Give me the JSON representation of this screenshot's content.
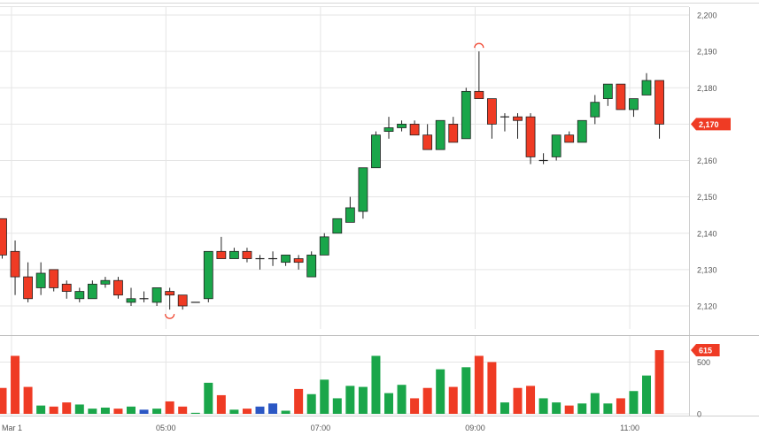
{
  "chart_data": {
    "type": "candlestick",
    "price_axis": {
      "ticks": [
        "2,200",
        "2,190",
        "2,180",
        "2,170",
        "2,160",
        "2,150",
        "2,140",
        "2,130",
        "2,120"
      ],
      "range": [
        2115,
        2200
      ],
      "last_price": 2170,
      "last_price_label": "2,170"
    },
    "volume_axis": {
      "ticks": [
        "500",
        "0"
      ],
      "range": [
        0,
        615
      ],
      "last_volume_label": "615"
    },
    "time_axis": {
      "labels": [
        "Mar 1",
        "05:00",
        "07:00",
        "09:00",
        "11:00"
      ]
    },
    "colors": {
      "up": "#1aa64a",
      "down": "#ef3b24",
      "neutral_volume": "#2b57c4",
      "grid": "#e5e5e5",
      "axis_text": "#555555",
      "tag_bg": "#ef3b24",
      "marker": "#ef3b24"
    },
    "grid": true,
    "candles": [
      {
        "t": "",
        "o": 2144,
        "h": 2144,
        "l": 2133,
        "c": 2134,
        "v": 250
      },
      {
        "t": "",
        "o": 2135,
        "h": 2138,
        "l": 2123,
        "c": 2128,
        "v": 560
      },
      {
        "t": "",
        "o": 2128,
        "h": 2132,
        "l": 2121,
        "c": 2122,
        "v": 260
      },
      {
        "t": "",
        "o": 2125,
        "h": 2132,
        "l": 2123,
        "c": 2129,
        "v": 80
      },
      {
        "t": "",
        "o": 2130,
        "h": 2130,
        "l": 2124,
        "c": 2125,
        "v": 70
      },
      {
        "t": "",
        "o": 2126,
        "h": 2127,
        "l": 2122,
        "c": 2124,
        "v": 110
      },
      {
        "t": "",
        "o": 2122,
        "h": 2125,
        "l": 2121,
        "c": 2124,
        "v": 90
      },
      {
        "t": "",
        "o": 2122,
        "h": 2127,
        "l": 2122,
        "c": 2126,
        "v": 50
      },
      {
        "t": "",
        "o": 2126,
        "h": 2128,
        "l": 2125,
        "c": 2127,
        "v": 60
      },
      {
        "t": "",
        "o": 2127,
        "h": 2128,
        "l": 2122,
        "c": 2123,
        "v": 50
      },
      {
        "t": "",
        "o": 2121,
        "h": 2125,
        "l": 2120,
        "c": 2122,
        "v": 70
      },
      {
        "t": "",
        "o": 2122,
        "h": 2124,
        "l": 2121,
        "c": 2122,
        "v": 40,
        "vc": "neutral"
      },
      {
        "t": "",
        "o": 2121,
        "h": 2125,
        "l": 2120,
        "c": 2125,
        "v": 50
      },
      {
        "t": "",
        "o": 2124,
        "h": 2125,
        "l": 2119,
        "c": 2123,
        "v": 120
      },
      {
        "t": "",
        "o": 2123,
        "h": 2123,
        "l": 2119,
        "c": 2120,
        "v": 70
      },
      {
        "t": "",
        "o": 2121,
        "h": 2121,
        "l": 2121,
        "c": 2121,
        "v": 10
      },
      {
        "t": "",
        "o": 2122,
        "h": 2135,
        "l": 2121,
        "c": 2135,
        "v": 300
      },
      {
        "t": "",
        "o": 2135,
        "h": 2139,
        "l": 2133,
        "c": 2133,
        "v": 180
      },
      {
        "t": "",
        "o": 2133,
        "h": 2136,
        "l": 2133,
        "c": 2135,
        "v": 40
      },
      {
        "t": "",
        "o": 2135,
        "h": 2136,
        "l": 2132,
        "c": 2133,
        "v": 50
      },
      {
        "t": "",
        "o": 2133,
        "h": 2134,
        "l": 2130,
        "c": 2133,
        "v": 70,
        "vc": "neutral"
      },
      {
        "t": "",
        "o": 2133,
        "h": 2135,
        "l": 2131,
        "c": 2133,
        "v": 100,
        "vc": "neutral"
      },
      {
        "t": "",
        "o": 2132,
        "h": 2134,
        "l": 2131,
        "c": 2134,
        "v": 30
      },
      {
        "t": "",
        "o": 2133,
        "h": 2134,
        "l": 2130,
        "c": 2132,
        "v": 240
      },
      {
        "t": "",
        "o": 2128,
        "h": 2135,
        "l": 2128,
        "c": 2134,
        "v": 190
      },
      {
        "t": "",
        "o": 2134,
        "h": 2140,
        "l": 2134,
        "c": 2139,
        "v": 330
      },
      {
        "t": "",
        "o": 2140,
        "h": 2144,
        "l": 2140,
        "c": 2144,
        "v": 150
      },
      {
        "t": "",
        "o": 2143,
        "h": 2150,
        "l": 2143,
        "c": 2147,
        "v": 270
      },
      {
        "t": "",
        "o": 2146,
        "h": 2158,
        "l": 2144,
        "c": 2158,
        "v": 260
      },
      {
        "t": "",
        "o": 2158,
        "h": 2168,
        "l": 2158,
        "c": 2167,
        "v": 560
      },
      {
        "t": "",
        "o": 2168,
        "h": 2172,
        "l": 2166,
        "c": 2169,
        "v": 200
      },
      {
        "t": "",
        "o": 2169,
        "h": 2171,
        "l": 2168,
        "c": 2170,
        "v": 280
      },
      {
        "t": "",
        "o": 2170,
        "h": 2171,
        "l": 2167,
        "c": 2167,
        "v": 150
      },
      {
        "t": "",
        "o": 2167,
        "h": 2170,
        "l": 2163,
        "c": 2163,
        "v": 250
      },
      {
        "t": "",
        "o": 2163,
        "h": 2171,
        "l": 2163,
        "c": 2171,
        "v": 430
      },
      {
        "t": "",
        "o": 2170,
        "h": 2172,
        "l": 2165,
        "c": 2165,
        "v": 260
      },
      {
        "t": "",
        "o": 2166,
        "h": 2180,
        "l": 2166,
        "c": 2179,
        "v": 450
      },
      {
        "t": "",
        "o": 2179,
        "h": 2190,
        "l": 2177,
        "c": 2177,
        "v": 560
      },
      {
        "t": "",
        "o": 2177,
        "h": 2177,
        "l": 2166,
        "c": 2170,
        "v": 500
      },
      {
        "t": "",
        "o": 2172,
        "h": 2173,
        "l": 2168,
        "c": 2172,
        "v": 110
      },
      {
        "t": "",
        "o": 2172,
        "h": 2173,
        "l": 2166,
        "c": 2171,
        "v": 250
      },
      {
        "t": "",
        "o": 2172,
        "h": 2173,
        "l": 2159,
        "c": 2161,
        "v": 270
      },
      {
        "t": "",
        "o": 2160,
        "h": 2162,
        "l": 2159,
        "c": 2160,
        "v": 150
      },
      {
        "t": "",
        "o": 2161,
        "h": 2167,
        "l": 2160,
        "c": 2167,
        "v": 110
      },
      {
        "t": "",
        "o": 2167,
        "h": 2168,
        "l": 2165,
        "c": 2165,
        "v": 80
      },
      {
        "t": "",
        "o": 2165,
        "h": 2171,
        "l": 2165,
        "c": 2171,
        "v": 100
      },
      {
        "t": "",
        "o": 2172,
        "h": 2178,
        "l": 2170,
        "c": 2176,
        "v": 200
      },
      {
        "t": "",
        "o": 2177,
        "h": 2181,
        "l": 2175,
        "c": 2181,
        "v": 100
      },
      {
        "t": "",
        "o": 2181,
        "h": 2181,
        "l": 2174,
        "c": 2174,
        "v": 150
      },
      {
        "t": "",
        "o": 2174,
        "h": 2177,
        "l": 2172,
        "c": 2177,
        "v": 220
      },
      {
        "t": "",
        "o": 2178,
        "h": 2184,
        "l": 2178,
        "c": 2182,
        "v": 370
      },
      {
        "t": "",
        "o": 2182,
        "h": 2182,
        "l": 2166,
        "c": 2170,
        "v": 615
      }
    ],
    "markers": [
      {
        "candle_index": 13,
        "position": "below"
      },
      {
        "candle_index": 37,
        "position": "above"
      }
    ]
  }
}
